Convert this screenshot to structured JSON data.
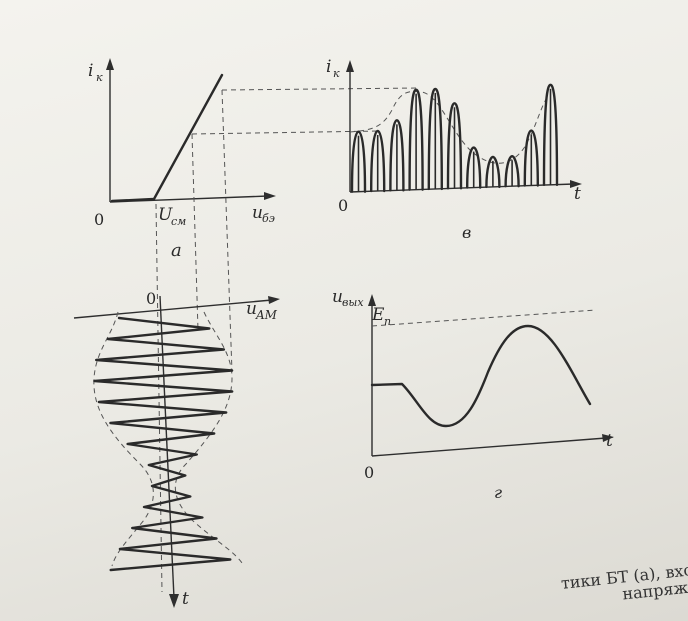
{
  "chart_data": [
    {
      "panel": "a",
      "type": "line",
      "xlabel": "u_бэ",
      "ylabel": "i_к",
      "origin_label": "0",
      "bias_label": "U_см",
      "panel_label": "а",
      "description_points": {
        "x": [
          0,
          1,
          2
        ],
        "y": [
          0,
          0.6,
          1.1
        ]
      }
    },
    {
      "panel": "в",
      "type": "line",
      "xlabel": "t",
      "ylabel": "i_к",
      "origin_label": "0",
      "panel_label": "в",
      "pulse_peaks": [
        0.6,
        0.6,
        0.7,
        1.0,
        1.0,
        0.85,
        0.4,
        0.3,
        0.3,
        0.55,
        1.0
      ]
    },
    {
      "panel": "г",
      "type": "line",
      "xlabel": "t",
      "ylabel": "u_вых",
      "origin_label": "0",
      "level_label": "E_п",
      "panel_label": "г"
    },
    {
      "panel": "input",
      "type": "line",
      "xlabel": "u_AM",
      "ylabel": "t",
      "origin_label": "0"
    }
  ],
  "labels": {
    "ik_a": "i",
    "ik_a_sub": "к",
    "ube": "u",
    "ube_sub": "бэ",
    "ucm": "U",
    "ucm_sub": "см",
    "zero": "0",
    "panel_a": "а",
    "ik_v": "i",
    "ik_v_sub": "к",
    "t": "t",
    "panel_v": "в",
    "uam": "u",
    "uam_sub": "AM",
    "uvyx": "u",
    "uvyx_sub": "вых",
    "ep": "E",
    "ep_sub": "п",
    "panel_g": "г"
  },
  "caption": {
    "line1": "тики БТ (а), входного АМ",
    "line2": "напряжен"
  }
}
